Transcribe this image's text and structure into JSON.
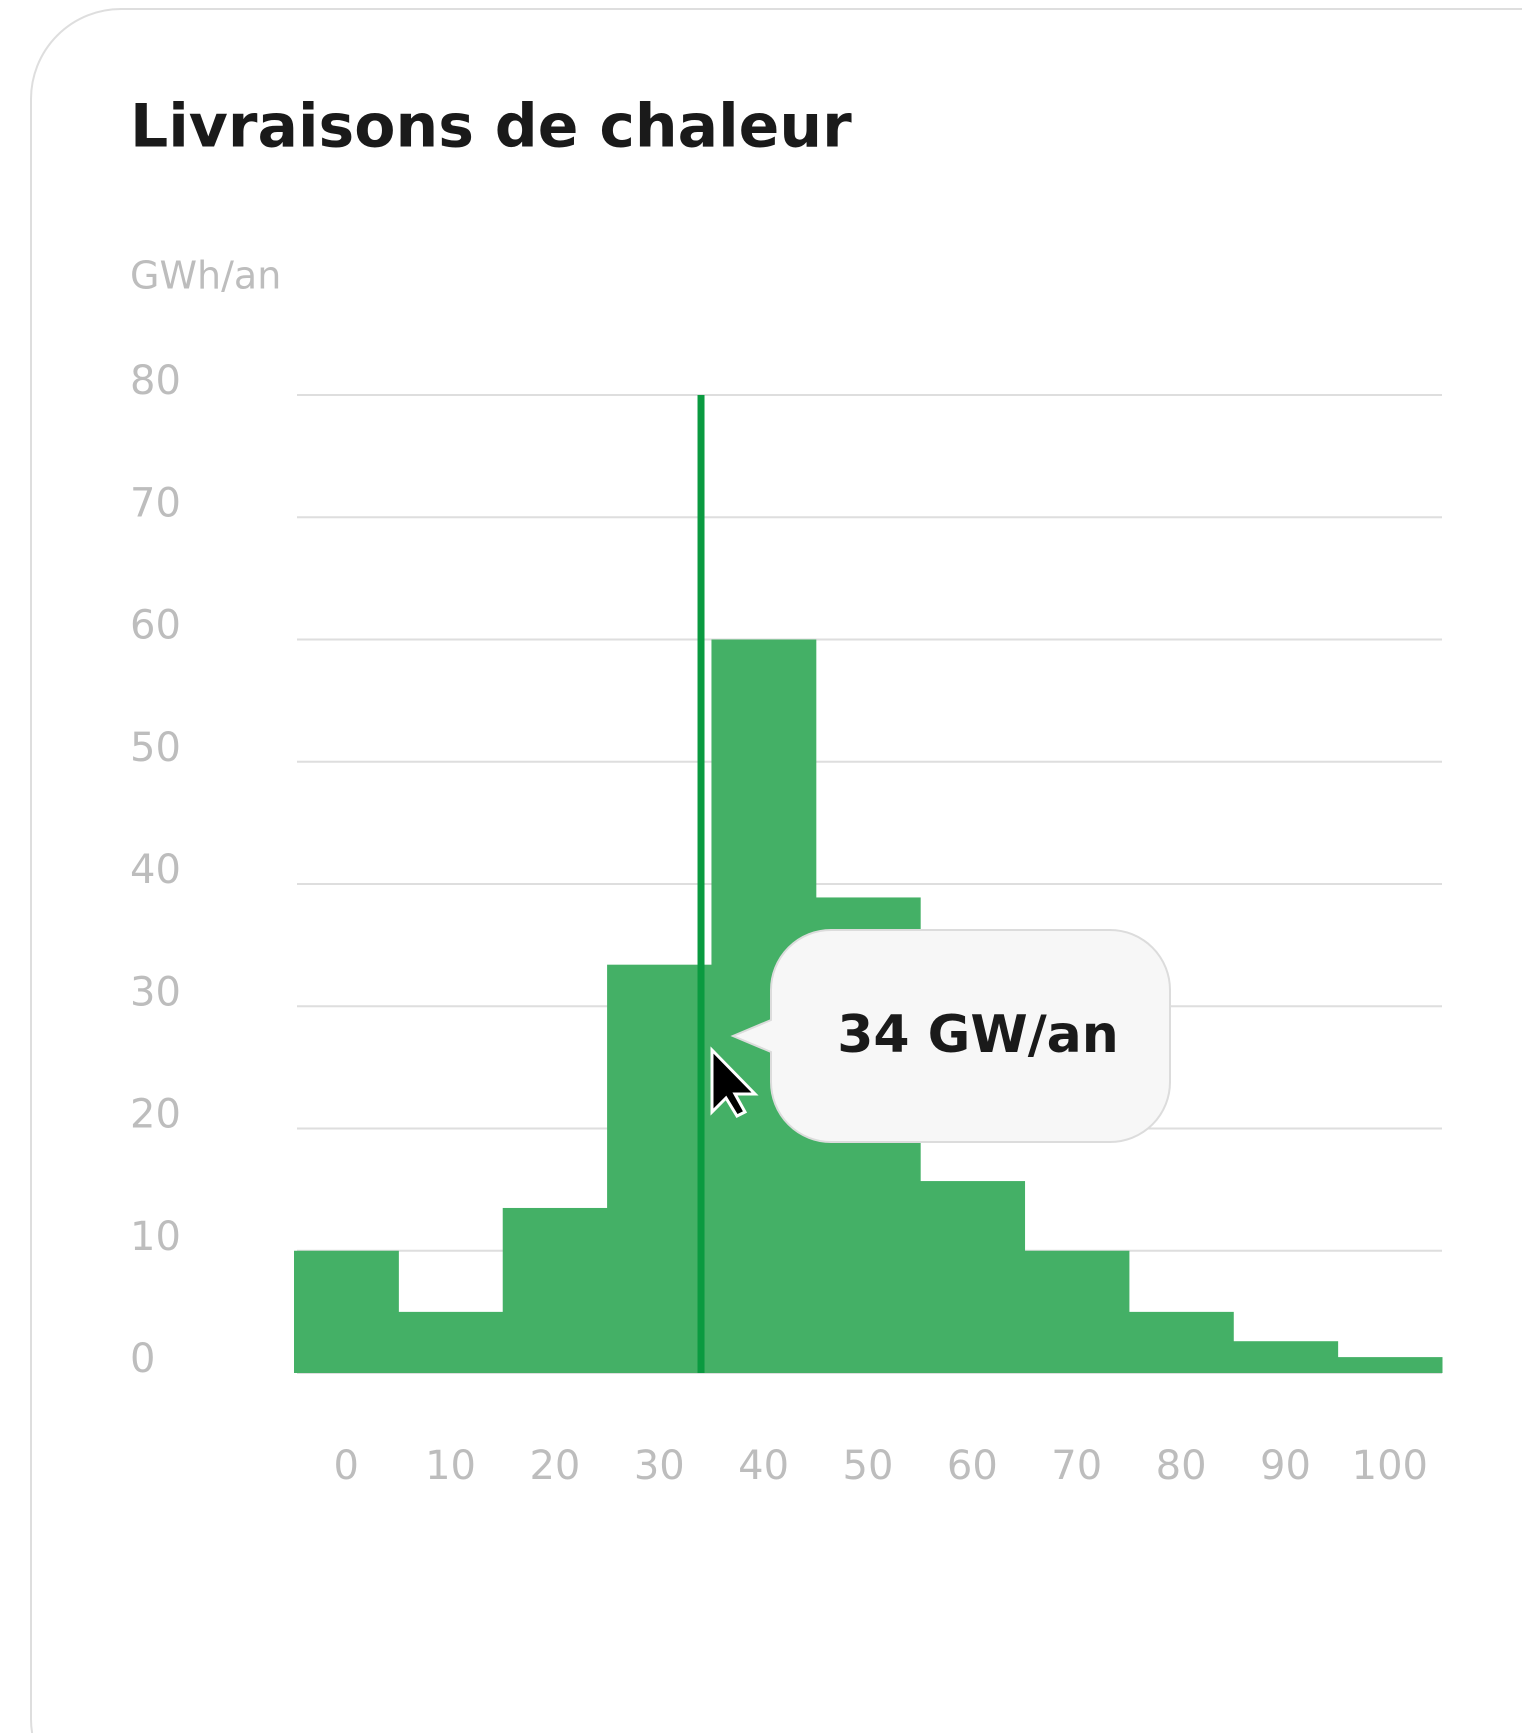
{
  "chart_data": {
    "type": "histogram",
    "title": "Livraisons de chaleur",
    "y_label": "GWh/an",
    "bins": [
      -5,
      5,
      15,
      25,
      35,
      45,
      55,
      65,
      75,
      85,
      95,
      105
    ],
    "values": [
      10,
      5,
      13.5,
      33.4,
      60,
      38.9,
      15.7,
      10,
      5,
      2.6,
      1.3
    ],
    "color": "#44b066",
    "xlim": [
      -5,
      105
    ],
    "xticks": [
      0,
      10,
      20,
      30,
      40,
      50,
      60,
      70,
      80,
      90,
      100
    ],
    "ylim": [
      0,
      80
    ],
    "yticks": [
      0,
      10,
      20,
      30,
      40,
      50,
      60,
      70,
      80
    ],
    "grid": true,
    "marker": {
      "x": 34,
      "label": "34 GW/an",
      "color": "#0a9a40"
    }
  }
}
